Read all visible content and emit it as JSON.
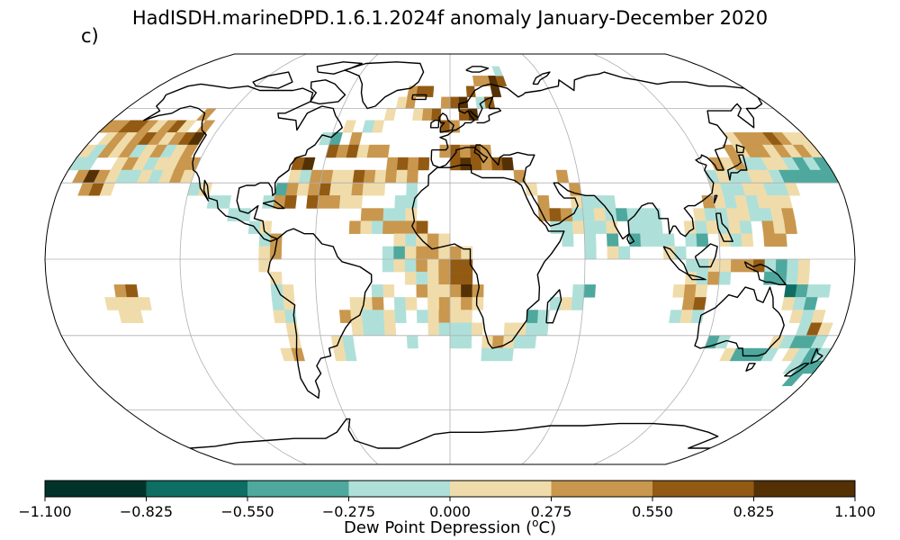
{
  "header": {
    "title": "HadISDH.marineDPD.1.6.1.2024f anomaly January-December 2020",
    "panel_label": "c)"
  },
  "colorbar": {
    "label_text": "Dew Point Depression (",
    "label_sup": "o",
    "label_unit": "C)",
    "ticks": [
      "−1.100",
      "−0.825",
      "−0.550",
      "−0.275",
      "0.000",
      "0.275",
      "0.550",
      "0.825",
      "1.100"
    ],
    "tick_values": [
      -1.1,
      -0.825,
      -0.55,
      -0.275,
      0.0,
      0.275,
      0.55,
      0.825,
      1.1
    ],
    "colors": [
      "#01332b",
      "#0e6e63",
      "#4ea89d",
      "#aee0d9",
      "#f0dcaa",
      "#c9974d",
      "#925a13",
      "#543005"
    ]
  },
  "map": {
    "projection": "Robinson",
    "grid": true,
    "land_fill": "none",
    "ocean_fill": "#ffffff"
  }
}
